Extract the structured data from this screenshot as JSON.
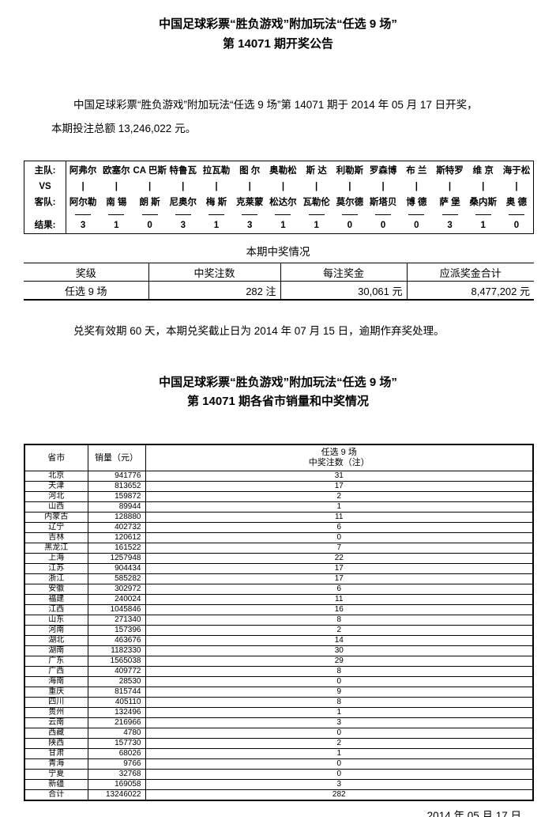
{
  "header": {
    "title_line1": "中国足球彩票“胜负游戏”附加玩法“任选 9 场”",
    "title_line2": "第 14071 期开奖公告"
  },
  "intro": {
    "line1": "中国足球彩票“胜负游戏”附加玩法“任选 9 场”第 14071 期于 2014 年 05 月 17 日开奖，",
    "line2": "本期投注总额 13,246,022 元。"
  },
  "match_table": {
    "labels": {
      "home": "主队:",
      "vs": "VS",
      "away": "客队:",
      "result": "结果:"
    },
    "vs_mark": "|",
    "matches": [
      {
        "home": "阿弗尔",
        "away": "阿尔勒",
        "result": "3"
      },
      {
        "home": "欧塞尔",
        "away": "南 锡",
        "result": "1"
      },
      {
        "home": "CA 巴斯",
        "away": "朗 斯",
        "result": "0"
      },
      {
        "home": "特鲁瓦",
        "away": "尼奥尔",
        "result": "3"
      },
      {
        "home": "拉瓦勒",
        "away": "梅 斯",
        "result": "1"
      },
      {
        "home": "图 尔",
        "away": "克莱蒙",
        "result": "3"
      },
      {
        "home": "奥勒松",
        "away": "松达尔",
        "result": "1"
      },
      {
        "home": "斯 达",
        "away": "瓦勒伦",
        "result": "1"
      },
      {
        "home": "利勒斯",
        "away": "莫尔德",
        "result": "0"
      },
      {
        "home": "罗森博",
        "away": "斯塔贝",
        "result": "0"
      },
      {
        "home": "布 兰",
        "away": "博 德",
        "result": "0"
      },
      {
        "home": "斯特罗",
        "away": "萨 堡",
        "result": "3"
      },
      {
        "home": "维 京",
        "away": "桑内斯",
        "result": "1"
      },
      {
        "home": "海于松",
        "away": "奥 德",
        "result": "0"
      }
    ]
  },
  "prize_section": {
    "heading": "本期中奖情况",
    "columns": [
      "奖级",
      "中奖注数",
      "每注奖金",
      "应派奖金合计"
    ],
    "row": {
      "level": "任选 9 场",
      "count": "282 注",
      "per_prize": "30,061 元",
      "total": "8,477,202 元"
    }
  },
  "redeem_notice": "兑奖有效期 60 天，本期兑奖截止日为 2014 年 07 月 15 日，逾期作弃奖处理。",
  "section2": {
    "title_line1": "中国足球彩票“胜负游戏”附加玩法“任选 9 场”",
    "title_line2": "第 14071 期各省市销量和中奖情况"
  },
  "province_table": {
    "col_province": "省市",
    "col_sales": "销量（元）",
    "col_game_line1": "任选 9 场",
    "col_game_line2": "中奖注数（注）",
    "rows": [
      {
        "name": "北京",
        "sales": "941776",
        "wins": "31"
      },
      {
        "name": "天津",
        "sales": "813652",
        "wins": "17"
      },
      {
        "name": "河北",
        "sales": "159872",
        "wins": "2"
      },
      {
        "name": "山西",
        "sales": "89944",
        "wins": "1"
      },
      {
        "name": "内蒙古",
        "sales": "128880",
        "wins": "11"
      },
      {
        "name": "辽宁",
        "sales": "402732",
        "wins": "6"
      },
      {
        "name": "吉林",
        "sales": "120612",
        "wins": "0"
      },
      {
        "name": "黑龙江",
        "sales": "161522",
        "wins": "7"
      },
      {
        "name": "上海",
        "sales": "1257948",
        "wins": "22"
      },
      {
        "name": "江苏",
        "sales": "904434",
        "wins": "17"
      },
      {
        "name": "浙江",
        "sales": "585282",
        "wins": "17"
      },
      {
        "name": "安徽",
        "sales": "302972",
        "wins": "6"
      },
      {
        "name": "福建",
        "sales": "240024",
        "wins": "11"
      },
      {
        "name": "江西",
        "sales": "1045846",
        "wins": "16"
      },
      {
        "name": "山东",
        "sales": "271340",
        "wins": "8"
      },
      {
        "name": "河南",
        "sales": "157396",
        "wins": "2"
      },
      {
        "name": "湖北",
        "sales": "463676",
        "wins": "14"
      },
      {
        "name": "湖南",
        "sales": "1182330",
        "wins": "30"
      },
      {
        "name": "广东",
        "sales": "1565038",
        "wins": "29"
      },
      {
        "name": "广西",
        "sales": "409772",
        "wins": "8"
      },
      {
        "name": "海南",
        "sales": "28530",
        "wins": "0"
      },
      {
        "name": "重庆",
        "sales": "815744",
        "wins": "9"
      },
      {
        "name": "四川",
        "sales": "405110",
        "wins": "8"
      },
      {
        "name": "贵州",
        "sales": "132496",
        "wins": "1"
      },
      {
        "name": "云南",
        "sales": "216966",
        "wins": "3"
      },
      {
        "name": "西藏",
        "sales": "4780",
        "wins": "0"
      },
      {
        "name": "陕西",
        "sales": "157730",
        "wins": "2"
      },
      {
        "name": "甘肃",
        "sales": "68026",
        "wins": "1"
      },
      {
        "name": "青海",
        "sales": "9766",
        "wins": "0"
      },
      {
        "name": "宁夏",
        "sales": "32768",
        "wins": "0"
      },
      {
        "name": "新疆",
        "sales": "169058",
        "wins": "3"
      }
    ],
    "total_row": {
      "name": "合计",
      "sales": "13246022",
      "wins": "282"
    }
  },
  "footer_date": "2014 年 05 月 17 日"
}
